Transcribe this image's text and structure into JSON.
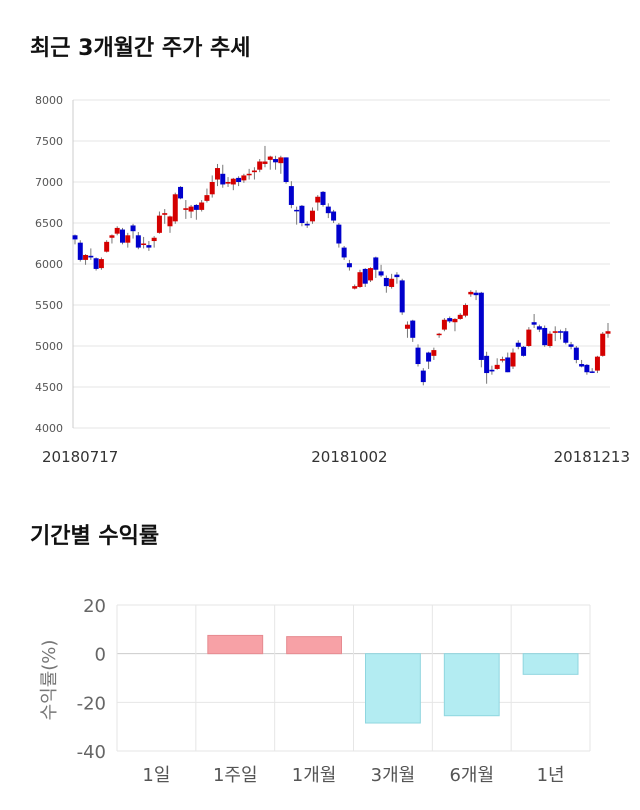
{
  "sections": {
    "price_title": "최근 3개월간 주가 추세",
    "returns_title": "기간별 수익률"
  },
  "colors": {
    "up": "#d40000",
    "down": "#0000cc",
    "positive_bar": "#f7a1a6",
    "negative_bar": "#b3ecf2",
    "grid": "#e6e6e6"
  },
  "chart_data": [
    {
      "type": "candlestick",
      "title": "최근 3개월간 주가 추세",
      "ylim": [
        4000,
        8000
      ],
      "y_ticks": [
        "8000",
        "7500",
        "7000",
        "6500",
        "6000",
        "5500",
        "5000",
        "4500",
        "4000"
      ],
      "x_tick_labels": [
        {
          "index": 0,
          "label": "20180717"
        },
        {
          "index": 52,
          "label": "20181002"
        },
        {
          "index": 101,
          "label": "20181213"
        }
      ],
      "grid": true,
      "candles": [
        [
          6350,
          6360,
          6240,
          6300
        ],
        [
          6260,
          6290,
          6030,
          6050
        ],
        [
          6050,
          6120,
          5990,
          6110
        ],
        [
          6100,
          6190,
          6050,
          6080
        ],
        [
          6070,
          6080,
          5920,
          5940
        ],
        [
          5950,
          6080,
          5930,
          6060
        ],
        [
          6150,
          6290,
          6140,
          6270
        ],
        [
          6320,
          6360,
          6250,
          6350
        ],
        [
          6370,
          6460,
          6350,
          6440
        ],
        [
          6420,
          6440,
          6240,
          6260
        ],
        [
          6260,
          6380,
          6200,
          6350
        ],
        [
          6470,
          6490,
          6310,
          6400
        ],
        [
          6350,
          6390,
          6180,
          6200
        ],
        [
          6240,
          6330,
          6190,
          6250
        ],
        [
          6230,
          6280,
          6160,
          6200
        ],
        [
          6280,
          6340,
          6200,
          6320
        ],
        [
          6380,
          6640,
          6370,
          6590
        ],
        [
          6600,
          6670,
          6490,
          6620
        ],
        [
          6460,
          6590,
          6380,
          6580
        ],
        [
          6520,
          6870,
          6490,
          6850
        ],
        [
          6940,
          6950,
          6790,
          6800
        ],
        [
          6660,
          6780,
          6550,
          6680
        ],
        [
          6640,
          6720,
          6560,
          6700
        ],
        [
          6720,
          6730,
          6540,
          6660
        ],
        [
          6660,
          6780,
          6640,
          6750
        ],
        [
          6770,
          6920,
          6750,
          6840
        ],
        [
          6850,
          7080,
          6810,
          7000
        ],
        [
          7030,
          7220,
          6950,
          7170
        ],
        [
          7100,
          7210,
          6930,
          6970
        ],
        [
          6980,
          7060,
          6940,
          7000
        ],
        [
          6970,
          7050,
          6900,
          7040
        ],
        [
          7050,
          7070,
          6950,
          7000
        ],
        [
          7020,
          7100,
          6990,
          7080
        ],
        [
          7090,
          7160,
          7030,
          7100
        ],
        [
          7120,
          7180,
          7030,
          7140
        ],
        [
          7150,
          7280,
          7120,
          7250
        ],
        [
          7220,
          7440,
          7180,
          7250
        ],
        [
          7270,
          7320,
          7150,
          7310
        ],
        [
          7280,
          7320,
          7150,
          7240
        ],
        [
          7230,
          7320,
          7100,
          7300
        ],
        [
          7300,
          7300,
          6980,
          7000
        ],
        [
          6950,
          7010,
          6680,
          6720
        ],
        [
          6660,
          6700,
          6480,
          6650
        ],
        [
          6710,
          6720,
          6460,
          6500
        ],
        [
          6490,
          6520,
          6440,
          6470
        ],
        [
          6520,
          6690,
          6490,
          6650
        ],
        [
          6750,
          6840,
          6650,
          6820
        ],
        [
          6880,
          6890,
          6700,
          6720
        ],
        [
          6700,
          6740,
          6560,
          6620
        ],
        [
          6640,
          6660,
          6500,
          6530
        ],
        [
          6480,
          6500,
          6200,
          6250
        ],
        [
          6200,
          6220,
          6050,
          6080
        ],
        [
          6010,
          6050,
          5920,
          5960
        ],
        [
          5700,
          5750,
          5690,
          5730
        ],
        [
          5720,
          5930,
          5710,
          5900
        ],
        [
          5940,
          5950,
          5720,
          5760
        ],
        [
          5800,
          5960,
          5780,
          5950
        ],
        [
          6080,
          6090,
          5830,
          5930
        ],
        [
          5910,
          5990,
          5840,
          5860
        ],
        [
          5830,
          5860,
          5650,
          5730
        ],
        [
          5720,
          5880,
          5700,
          5820
        ],
        [
          5870,
          5900,
          5760,
          5840
        ],
        [
          5800,
          5820,
          5380,
          5410
        ],
        [
          5210,
          5300,
          5100,
          5260
        ],
        [
          5310,
          5320,
          5050,
          5100
        ],
        [
          4980,
          5020,
          4750,
          4780
        ],
        [
          4700,
          4730,
          4520,
          4560
        ],
        [
          4920,
          4930,
          4720,
          4810
        ],
        [
          4880,
          4980,
          4830,
          4950
        ],
        [
          5140,
          5160,
          5100,
          5150
        ],
        [
          5200,
          5340,
          5180,
          5320
        ],
        [
          5340,
          5360,
          5280,
          5300
        ],
        [
          5290,
          5340,
          5180,
          5330
        ],
        [
          5330,
          5400,
          5320,
          5380
        ],
        [
          5370,
          5520,
          5350,
          5500
        ],
        [
          5630,
          5680,
          5600,
          5660
        ],
        [
          5650,
          5680,
          5560,
          5620
        ],
        [
          5650,
          5660,
          4740,
          4830
        ],
        [
          4880,
          4930,
          4540,
          4670
        ],
        [
          4710,
          4760,
          4650,
          4690
        ],
        [
          4720,
          4850,
          4710,
          4770
        ],
        [
          4830,
          4870,
          4800,
          4840
        ],
        [
          4860,
          4920,
          4680,
          4680
        ],
        [
          4750,
          4970,
          4720,
          4920
        ],
        [
          5040,
          5070,
          4960,
          4990
        ],
        [
          4990,
          5000,
          4870,
          4880
        ],
        [
          5000,
          5230,
          4990,
          5200
        ],
        [
          5290,
          5390,
          5220,
          5260
        ],
        [
          5240,
          5260,
          5170,
          5200
        ],
        [
          5220,
          5250,
          4990,
          5010
        ],
        [
          5000,
          5180,
          4980,
          5150
        ],
        [
          5160,
          5240,
          5060,
          5180
        ],
        [
          5180,
          5200,
          5080,
          5170
        ],
        [
          5180,
          5220,
          5020,
          5040
        ],
        [
          5020,
          5050,
          4960,
          4990
        ],
        [
          4980,
          5000,
          4790,
          4830
        ],
        [
          4780,
          4830,
          4740,
          4750
        ],
        [
          4770,
          4780,
          4650,
          4680
        ],
        [
          4690,
          4730,
          4670,
          4680
        ],
        [
          4700,
          4880,
          4670,
          4870
        ],
        [
          4880,
          5170,
          4870,
          5150
        ],
        [
          5150,
          5280,
          5100,
          5180
        ]
      ]
    },
    {
      "type": "bar",
      "title": "기간별 수익률",
      "ylabel": "수익률(%)",
      "ylim": [
        -40,
        20
      ],
      "y_ticks": [
        "20",
        "0",
        "-20",
        "-40"
      ],
      "categories": [
        "1일",
        "1주일",
        "1개월",
        "3개월",
        "6개월",
        "1년"
      ],
      "values": [
        0,
        7.5,
        7.0,
        -28.5,
        -25.5,
        -8.5
      ],
      "grid": true
    }
  ]
}
